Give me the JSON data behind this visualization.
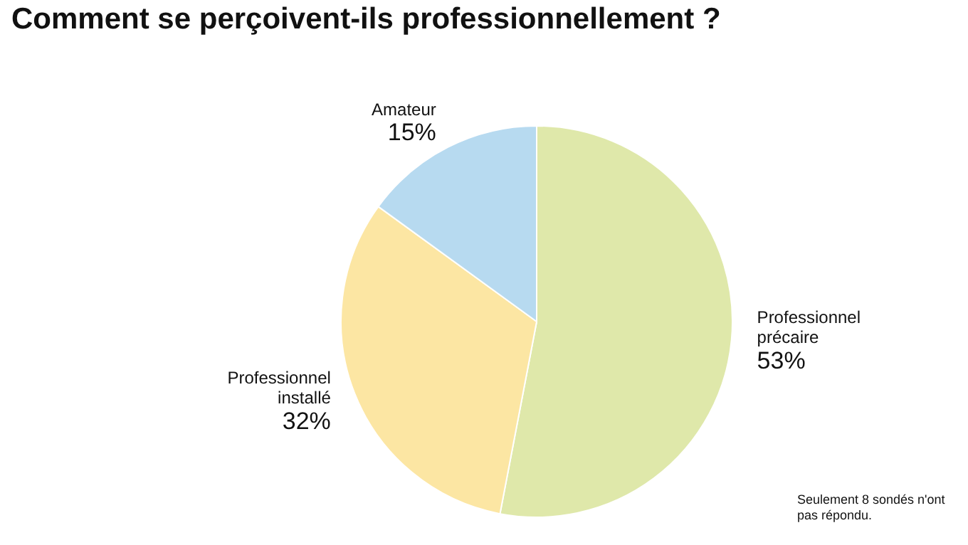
{
  "chart_data": {
    "type": "pie",
    "title": "Comment se perçoivent-ils professionnellement ?",
    "categories": [
      "Professionnel précaire",
      "Professionnel installé",
      "Amateur"
    ],
    "values": [
      53,
      32,
      15
    ],
    "colors": [
      "#dfe8aa",
      "#fce6a3",
      "#b7daf0"
    ],
    "value_labels": [
      "53%",
      "32%",
      "15%"
    ],
    "legend": false,
    "annotations": [
      "Seulement 8 sondés n'ont pas répondu."
    ]
  }
}
